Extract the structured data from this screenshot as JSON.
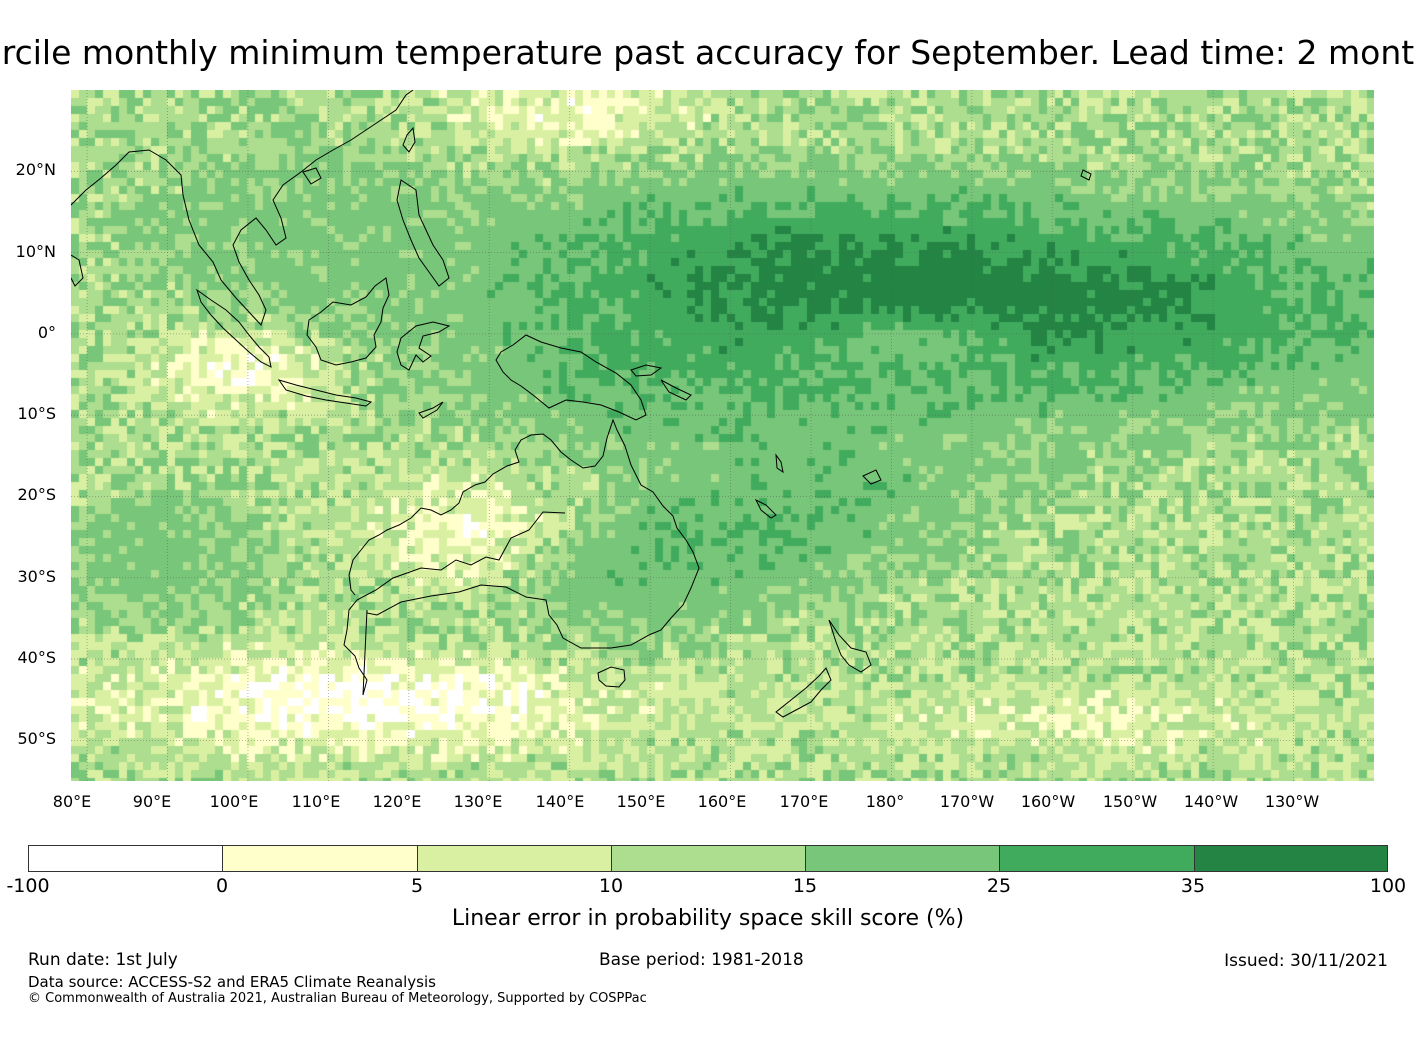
{
  "title": "rcile monthly minimum temperature past accuracy for September. Lead time: 2 mont",
  "map": {
    "lat_labels": [
      "20°N",
      "10°N",
      "0°",
      "10°S",
      "20°S",
      "30°S",
      "40°S",
      "50°S"
    ],
    "lon_labels": [
      "80°E",
      "90°E",
      "100°E",
      "110°E",
      "120°E",
      "130°E",
      "140°E",
      "150°E",
      "160°E",
      "170°E",
      "180°",
      "170°W",
      "160°W",
      "150°W",
      "140°W",
      "130°W"
    ],
    "lon_range": [
      78,
      240
    ],
    "lat_range": [
      -55,
      30
    ]
  },
  "legend": {
    "title": "Linear error in probability space skill score (%)",
    "ticks": [
      "-100",
      "0",
      "5",
      "10",
      "15",
      "25",
      "35",
      "100"
    ],
    "colors": [
      "#ffffff",
      "#ffffcc",
      "#d9f0a3",
      "#addd8e",
      "#78c679",
      "#41ab5d",
      "#238443"
    ]
  },
  "footer": {
    "run_date": "Run date: 1st July",
    "base_period": "Base period: 1981-2018",
    "issued": "Issued: 30/11/2021",
    "data_source": "Data source: ACCESS-S2 and ERA5 Climate Reanalysis",
    "copyright": "© Commonwealth of Australia 2021, Australian Bureau of Meteorology, Supported by COSPPac"
  }
}
